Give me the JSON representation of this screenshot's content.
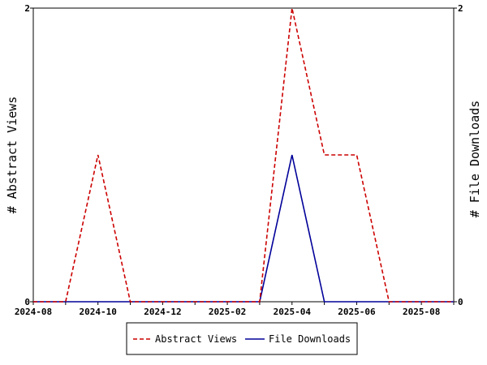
{
  "chart_data": {
    "type": "line",
    "title": "",
    "x_ticks": [
      "2024-08",
      "2024-10",
      "2024-12",
      "2025-02",
      "2025-04",
      "2025-06",
      "2025-08"
    ],
    "x": [
      "2024-08",
      "2024-09",
      "2024-10",
      "2024-11",
      "2024-12",
      "2025-01",
      "2025-02",
      "2025-03",
      "2025-04",
      "2025-05",
      "2025-06",
      "2025-07",
      "2025-08",
      "2025-09"
    ],
    "xlim": [
      "2024-08",
      "2025-09"
    ],
    "left_axis": {
      "label": "# Abstract Views",
      "ylim": [
        0,
        2
      ],
      "tick_labels": [
        "0",
        "2"
      ]
    },
    "right_axis": {
      "label": "# File Downloads",
      "ylim": [
        0,
        2
      ],
      "tick_labels": [
        "0",
        "2"
      ]
    },
    "series": [
      {
        "name": "Abstract Views",
        "axis": "left",
        "color": "#cc0000",
        "style": "dashed",
        "values": [
          0,
          0,
          1,
          0,
          0,
          0,
          0,
          0,
          2,
          1,
          1,
          0,
          0,
          0
        ]
      },
      {
        "name": "File Downloads",
        "axis": "right",
        "color": "#000099",
        "style": "solid",
        "values": [
          0,
          0,
          0,
          0,
          0,
          0,
          0,
          0,
          1,
          0,
          0,
          0,
          0,
          0
        ]
      }
    ],
    "grid": false,
    "legend_position": "bottom"
  }
}
